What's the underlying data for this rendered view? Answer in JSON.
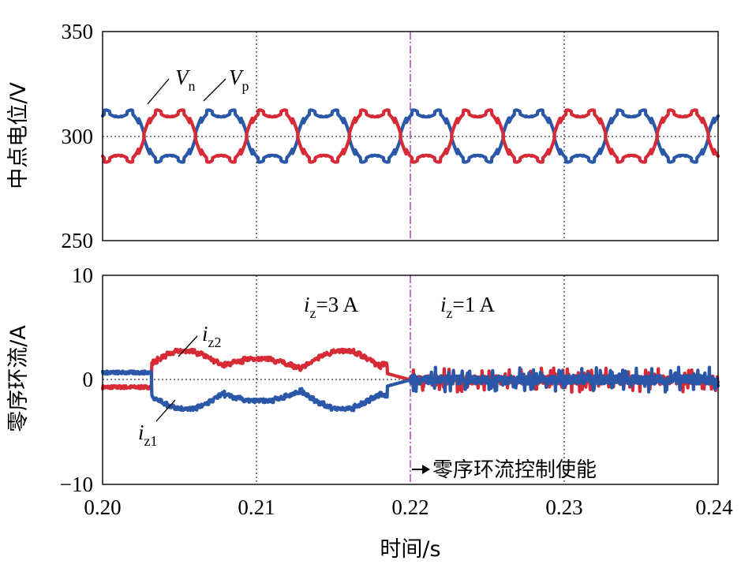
{
  "chart_data": [
    {
      "type": "line",
      "title": "",
      "xlabel": "",
      "ylabel": "中点电位/V",
      "xlim": [
        0.2,
        0.24
      ],
      "ylim": [
        250,
        350
      ],
      "yticks": [
        "350",
        "300",
        "250"
      ],
      "grid": true,
      "fundamental_hz": 150,
      "series": [
        {
          "name": "V",
          "subscript": "p",
          "color": "#2a57a8",
          "center": 300,
          "amplitude": 16,
          "phase_deg": 0
        },
        {
          "name": "V",
          "subscript": "n",
          "color": "#d62a36",
          "center": 300,
          "amplitude": 16,
          "phase_deg": 180
        }
      ]
    },
    {
      "type": "line",
      "title": "",
      "xlabel": "时间/s",
      "ylabel": "零序环流/A",
      "xlim": [
        0.2,
        0.24
      ],
      "ylim": [
        -10,
        10
      ],
      "xticks": [
        "0.20",
        "0.21",
        "0.22",
        "0.23",
        "0.24"
      ],
      "yticks": [
        "10",
        "0",
        "−10"
      ],
      "grid": true,
      "enable_time": 0.22,
      "series": [
        {
          "name": "i",
          "subscript": "z2",
          "color": "#d62a36",
          "peak_before_enable": 3,
          "peak_after_enable": 1
        },
        {
          "name": "i",
          "subscript": "z1",
          "color": "#2a57a8",
          "peak_before_enable": -3,
          "peak_after_enable": -1
        }
      ],
      "annotations": [
        {
          "name": "i",
          "subscript": "z",
          "value": "=3 A"
        },
        {
          "name": "i",
          "subscript": "z",
          "value": "=1 A"
        },
        {
          "text": "零序环流控制使能",
          "at_x": 0.22
        }
      ]
    }
  ],
  "colors": {
    "red": "#d62a36",
    "blue": "#2a57a8",
    "marker": "#9b3aa8"
  }
}
